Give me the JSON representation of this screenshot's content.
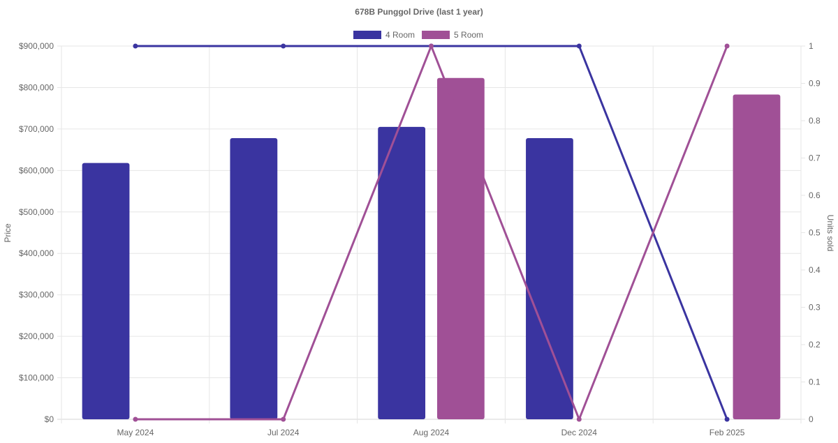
{
  "chart_data": {
    "type": "bar",
    "title": "678B Punggol Drive (last 1 year)",
    "categories": [
      "May 2024",
      "Jul 2024",
      "Aug 2024",
      "Dec 2024",
      "Feb 2025"
    ],
    "legend": {
      "position": "top"
    },
    "grid": true,
    "left_axis": {
      "label": "Price",
      "ylim": [
        0,
        900000
      ],
      "ticks": [
        "$0",
        "$100,000",
        "$200,000",
        "$300,000",
        "$400,000",
        "$500,000",
        "$600,000",
        "$700,000",
        "$800,000",
        "$900,000"
      ]
    },
    "right_axis": {
      "label": "Units sold",
      "ylim": [
        0,
        1
      ],
      "ticks": [
        "0",
        "0.1",
        "0.2",
        "0.3",
        "0.4",
        "0.5",
        "0.6",
        "0.7",
        "0.8",
        "0.9",
        "1"
      ]
    },
    "series": [
      {
        "name": "4 Room",
        "color": "#3a34a0",
        "price": [
          618000,
          678000,
          705000,
          678000,
          null
        ],
        "units_sold": [
          1,
          1,
          1,
          1,
          0
        ]
      },
      {
        "name": "5 Room",
        "color": "#a05096",
        "price": [
          null,
          null,
          823000,
          null,
          783000
        ],
        "units_sold": [
          0,
          0,
          1,
          0,
          1
        ]
      }
    ]
  }
}
